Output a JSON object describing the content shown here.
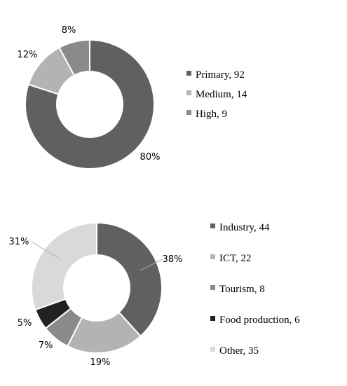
{
  "chart_data": [
    {
      "type": "pie",
      "donut": true,
      "legend_position": "right",
      "slices": [
        {
          "label": "Primary",
          "value": 92,
          "pct_label": "80%",
          "color": "#606060"
        },
        {
          "label": "Medium",
          "value": 14,
          "pct_label": "12%",
          "color": "#b3b3b3"
        },
        {
          "label": "High",
          "value": 9,
          "pct_label": "8%",
          "color": "#8a8a8a"
        }
      ]
    },
    {
      "type": "pie",
      "donut": true,
      "legend_position": "right",
      "slices": [
        {
          "label": "Industry",
          "value": 44,
          "pct_label": "38%",
          "color": "#606060"
        },
        {
          "label": "ICT",
          "value": 22,
          "pct_label": "19%",
          "color": "#b3b3b3"
        },
        {
          "label": "Tourism",
          "value": 8,
          "pct_label": "7%",
          "color": "#8a8a8a"
        },
        {
          "label": "Food production",
          "value": 6,
          "pct_label": "5%",
          "color": "#222222"
        },
        {
          "label": "Other",
          "value": 35,
          "pct_label": "31%",
          "color": "#d9d9d9"
        }
      ]
    }
  ]
}
